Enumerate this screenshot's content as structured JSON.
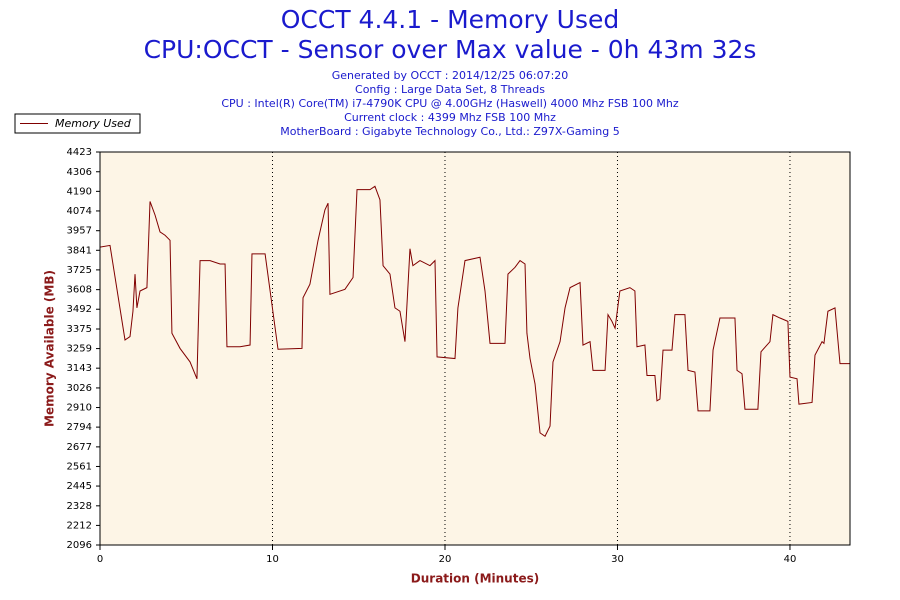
{
  "chart_data": {
    "type": "line",
    "title": "OCCT 4.4.1 - Memory Used",
    "subtitle": "CPU:OCCT - Sensor over Max value - 0h 43m 32s",
    "notes": [
      "Generated by OCCT : 2014/12/25 06:07:20",
      "Config : Large Data Set, 8 Threads",
      "CPU : Intel(R) Core(TM) i7-4790K CPU @ 4.00GHz (Haswell) 4000 Mhz FSB 100 Mhz",
      "Current clock : 4399 Mhz FSB 100 Mhz",
      "MotherBoard : Gigabyte Technology Co., Ltd.: Z97X-Gaming 5"
    ],
    "xlabel": "Duration (Minutes)",
    "ylabel": "Memory Available (MB)",
    "x": [
      0,
      0.58,
      1.45,
      1.74,
      1.91,
      2.03,
      2.14,
      2.32,
      2.72,
      2.9,
      3.19,
      3.48,
      3.77,
      4.06,
      4.17,
      4.64,
      5.22,
      5.62,
      5.8,
      6.38,
      6.96,
      7.25,
      7.36,
      8.12,
      8.7,
      8.81,
      9.57,
      10.32,
      11.71,
      11.77,
      12.17,
      12.64,
      13.04,
      13.22,
      13.33,
      14.2,
      14.67,
      14.9,
      15.65,
      15.94,
      16.23,
      16.41,
      16.81,
      17.1,
      17.39,
      17.68,
      17.97,
      18.14,
      18.55,
      19.13,
      19.42,
      19.54,
      20.58,
      20.75,
      21.16,
      22.03,
      22.32,
      22.61,
      23.48,
      23.65,
      24.06,
      24.35,
      24.64,
      24.75,
      24.93,
      25.22,
      25.51,
      25.8,
      26.09,
      26.26,
      26.67,
      26.96,
      27.25,
      27.83,
      28.0,
      28.41,
      28.58,
      29.28,
      29.45,
      29.68,
      29.86,
      30.14,
      30.72,
      31.01,
      31.13,
      31.59,
      31.71,
      32.17,
      32.29,
      32.46,
      32.64,
      33.16,
      33.33,
      33.91,
      34.09,
      34.49,
      34.67,
      35.36,
      35.54,
      35.94,
      36.81,
      36.93,
      37.22,
      37.39,
      38.14,
      38.32,
      38.84,
      39.01,
      39.42,
      39.88,
      40.0,
      40.41,
      40.52,
      41.28,
      41.45,
      41.86,
      41.97,
      42.2,
      42.61,
      42.9,
      43.48
    ],
    "series": [
      {
        "name": "Memory Used",
        "color": "#800000",
        "values": [
          3860,
          3870,
          3310,
          3330,
          3480,
          3700,
          3500,
          3600,
          3620,
          4130,
          4050,
          3950,
          3930,
          3900,
          3350,
          3260,
          3180,
          3080,
          3780,
          3780,
          3760,
          3760,
          3270,
          3270,
          3280,
          3820,
          3820,
          3255,
          3260,
          3560,
          3640,
          3900,
          4080,
          4120,
          3580,
          3610,
          3680,
          4200,
          4200,
          4220,
          4140,
          3750,
          3700,
          3500,
          3480,
          3300,
          3850,
          3750,
          3780,
          3750,
          3780,
          3210,
          3200,
          3500,
          3780,
          3800,
          3600,
          3290,
          3290,
          3700,
          3740,
          3780,
          3760,
          3350,
          3200,
          3050,
          2760,
          2740,
          2800,
          3180,
          3300,
          3500,
          3620,
          3650,
          3280,
          3300,
          3130,
          3130,
          3460,
          3420,
          3380,
          3600,
          3620,
          3600,
          3270,
          3280,
          3100,
          3100,
          2950,
          2960,
          3250,
          3250,
          3460,
          3460,
          3130,
          3120,
          2890,
          2890,
          3250,
          3440,
          3440,
          3130,
          3110,
          2900,
          2900,
          3240,
          3300,
          3460,
          3440,
          3420,
          3090,
          3080,
          2930,
          2940,
          3220,
          3300,
          3290,
          3480,
          3500,
          3170,
          3170
        ]
      }
    ],
    "xlim": [
      0,
      43.48
    ],
    "xticks": [
      0,
      10,
      20,
      30,
      40
    ],
    "ylim": [
      2096,
      4423
    ],
    "yticks": [
      2096,
      2212,
      2328,
      2445,
      2561,
      2677,
      2794,
      2910,
      3026,
      3143,
      3259,
      3375,
      3492,
      3608,
      3725,
      3841,
      3957,
      4074,
      4190,
      4306,
      4423
    ],
    "grid": "x",
    "background": "#fdf5e6"
  }
}
